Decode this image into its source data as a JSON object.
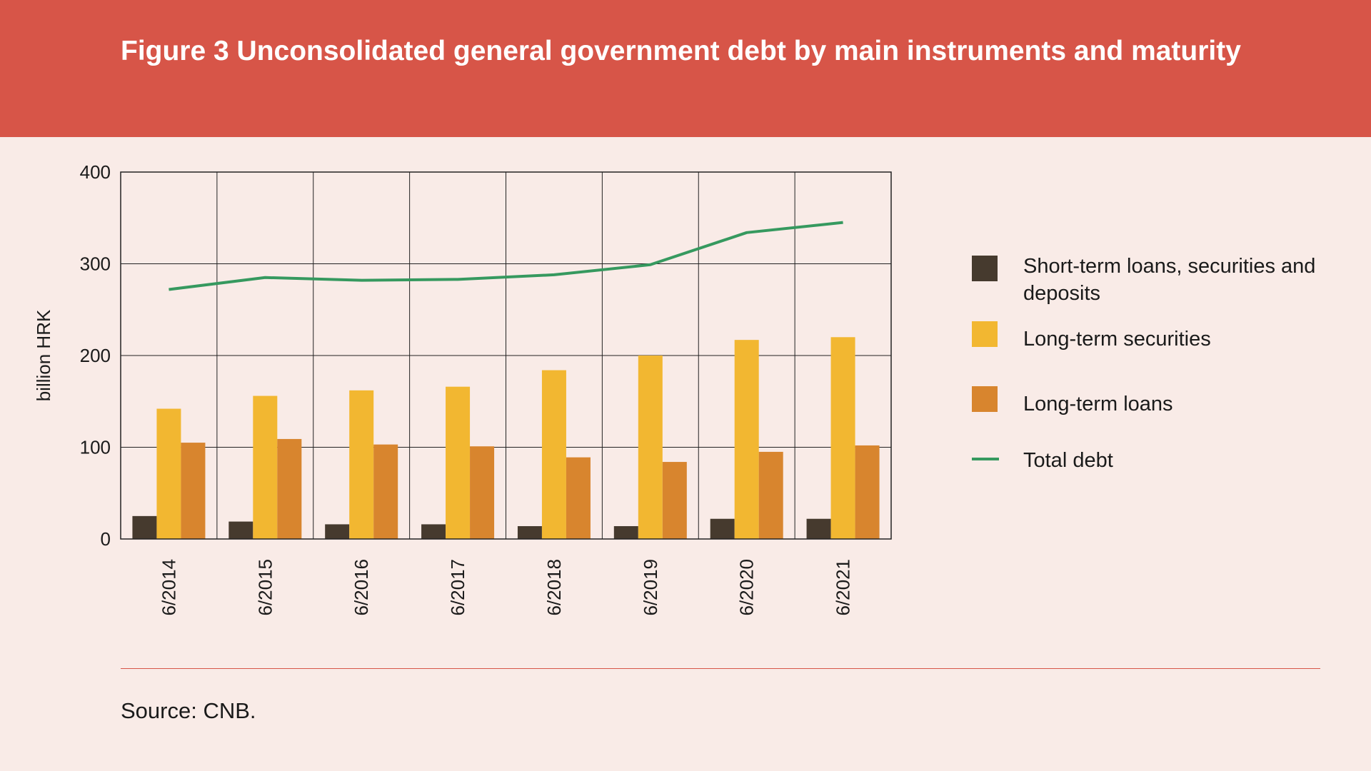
{
  "header": {
    "title": "Figure 3 Unconsolidated general government debt by main instruments and maturity"
  },
  "chart_data": {
    "type": "bar",
    "ylabel": "billion HRK",
    "ylim": [
      0,
      400
    ],
    "yticks": [
      0,
      100,
      200,
      300,
      400
    ],
    "grid": true,
    "legend_position": "right",
    "categories": [
      "6/2014",
      "6/2015",
      "6/2016",
      "6/2017",
      "6/2018",
      "6/2019",
      "6/2020",
      "6/2021"
    ],
    "series": [
      {
        "name": "Short-term loans, securities and deposits",
        "kind": "bar",
        "color": "#463a2e",
        "values": [
          25,
          19,
          16,
          16,
          14,
          14,
          22,
          22
        ]
      },
      {
        "name": "Long-term securities",
        "kind": "bar",
        "color": "#f2b731",
        "values": [
          142,
          156,
          162,
          166,
          184,
          200,
          217,
          220
        ]
      },
      {
        "name": "Long-term loans",
        "kind": "bar",
        "color": "#d8852e",
        "values": [
          105,
          109,
          103,
          101,
          89,
          84,
          95,
          102
        ]
      },
      {
        "name": "Total debt",
        "kind": "line",
        "color": "#36995f",
        "values": [
          272,
          285,
          282,
          283,
          288,
          299,
          334,
          345
        ]
      }
    ]
  },
  "footer": {
    "source": "Source: CNB."
  }
}
